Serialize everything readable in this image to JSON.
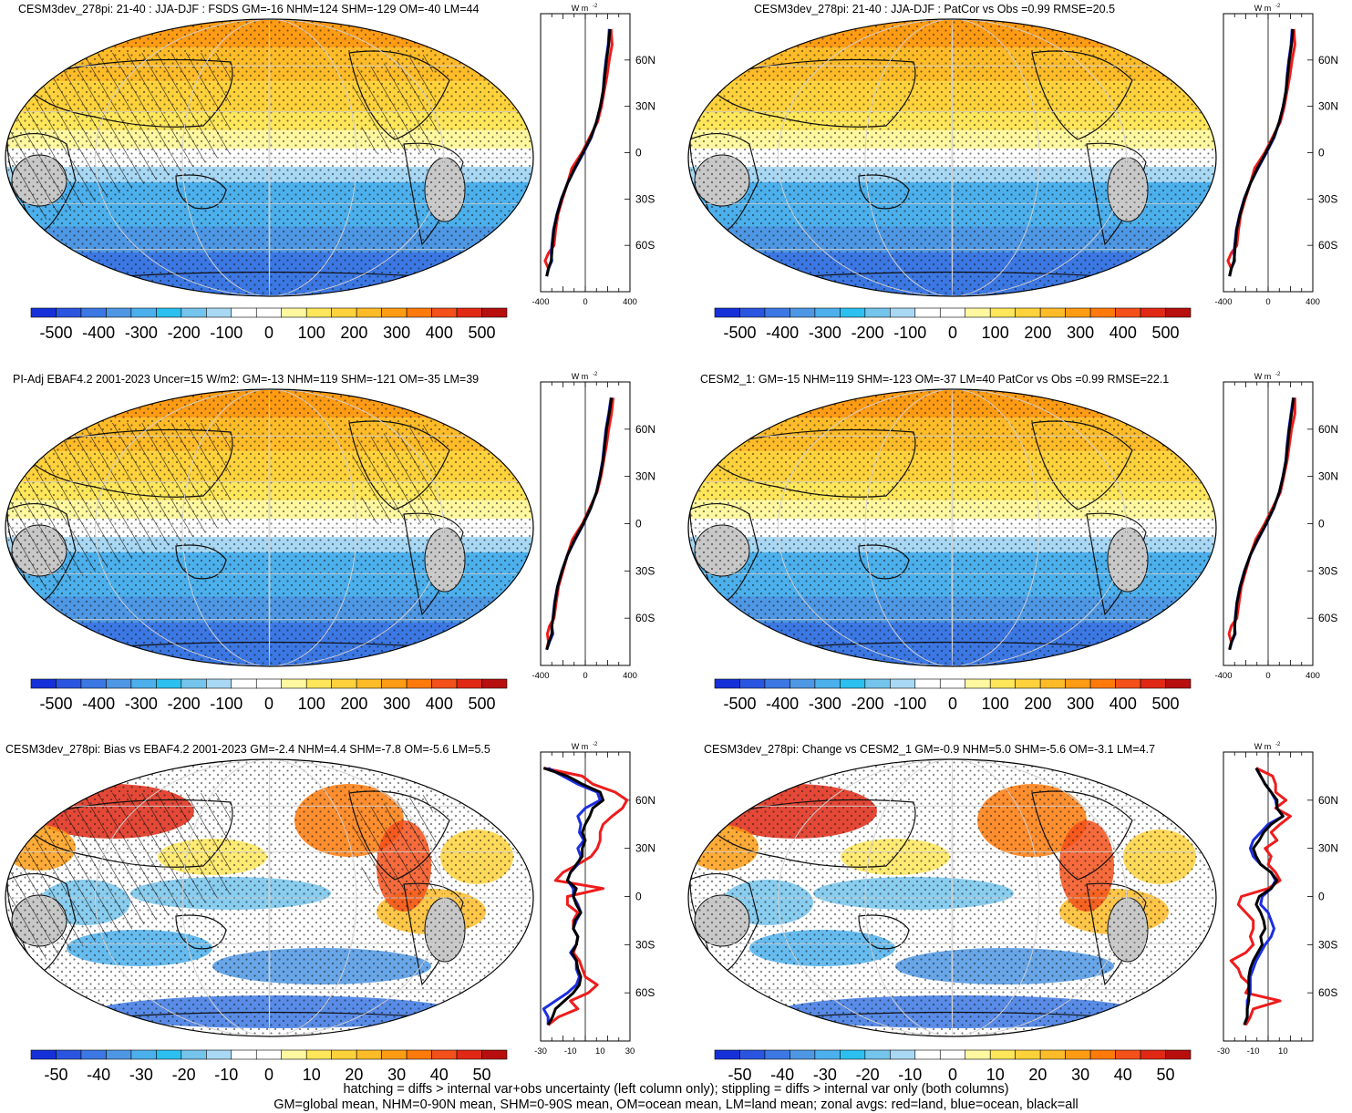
{
  "colors": {
    "scale": [
      "#1530d8",
      "#2a55e0",
      "#3c78e4",
      "#4e97e4",
      "#4cb0ec",
      "#2cc0f0",
      "#74c4ec",
      "#a8d8f4",
      "#ffffff",
      "#ffffff",
      "#fff8a0",
      "#ffe65a",
      "#ffd23c",
      "#ffbc28",
      "#ff9c14",
      "#ff7a0a",
      "#f4501a",
      "#e02814",
      "#b80e0e"
    ],
    "land": "#c8c8c8",
    "zonal_land": "#ee1c1c",
    "zonal_ocean": "#1c2ee0",
    "zonal_all": "#000000",
    "grid": "#d0d0d0"
  },
  "panels": [
    {
      "id": "p1",
      "title": "CESM3dev_278pi: 21-40 : JJA-DJF : FSDS GM=-16 NHM=124 SHM=-129 OM=-40 LM=44",
      "kind": "abs",
      "hatched": true,
      "colorbar": {
        "labels": [
          "-500",
          "-400",
          "-300",
          "-200",
          "-100",
          "0",
          "100",
          "200",
          "300",
          "400",
          "500"
        ]
      },
      "zonal": {
        "unit": "W m",
        "unit_sup": "-2",
        "xlim": [
          -400,
          400
        ],
        "xticks": [
          "-400",
          "0",
          "400"
        ],
        "lat_labels": [
          "60N",
          "30N",
          "0",
          "30S",
          "60S"
        ],
        "lat": [
          80,
          70,
          60,
          50,
          40,
          30,
          20,
          10,
          0,
          -10,
          -20,
          -30,
          -40,
          -50,
          -60,
          -65,
          -70,
          -75,
          -80
        ],
        "land": [
          230,
          240,
          215,
          195,
          170,
          145,
          110,
          40,
          -30,
          -120,
          -160,
          -205,
          -245,
          -265,
          -280,
          -330,
          -360,
          -330,
          -345
        ],
        "ocean": [
          215,
          205,
          185,
          170,
          160,
          135,
          100,
          55,
          -15,
          -90,
          -160,
          -215,
          -255,
          -285,
          -300,
          -305,
          -300,
          -330,
          -345
        ],
        "all": [
          220,
          210,
          190,
          175,
          160,
          135,
          100,
          50,
          -20,
          -95,
          -160,
          -212,
          -252,
          -282,
          -295,
          -300,
          -305,
          -330,
          -345
        ]
      }
    },
    {
      "id": "p2",
      "title": "CESM3dev_278pi: 21-40 : JJA-DJF : PatCor vs Obs =0.99 RMSE=20.5",
      "kind": "abs",
      "hatched": false,
      "colorbar": {
        "labels": [
          "-500",
          "-400",
          "-300",
          "-200",
          "-100",
          "0",
          "100",
          "200",
          "300",
          "400",
          "500"
        ]
      },
      "zonal": {
        "unit": "W m",
        "unit_sup": "-2",
        "xlim": [
          -400,
          400
        ],
        "xticks": [
          "-400",
          "0",
          "400"
        ],
        "lat_labels": [
          "60N",
          "30N",
          "0",
          "30S",
          "60S"
        ],
        "lat": [
          80,
          70,
          60,
          50,
          40,
          30,
          20,
          10,
          0,
          -10,
          -20,
          -30,
          -40,
          -50,
          -60,
          -65,
          -70,
          -75,
          -80
        ],
        "land": [
          230,
          240,
          215,
          195,
          170,
          145,
          110,
          40,
          -30,
          -120,
          -160,
          -205,
          -245,
          -265,
          -280,
          -330,
          -360,
          -330,
          -345
        ],
        "ocean": [
          215,
          205,
          185,
          170,
          160,
          135,
          100,
          55,
          -15,
          -90,
          -160,
          -215,
          -255,
          -285,
          -300,
          -305,
          -300,
          -330,
          -345
        ],
        "all": [
          220,
          210,
          190,
          175,
          160,
          135,
          100,
          50,
          -20,
          -95,
          -160,
          -212,
          -252,
          -282,
          -295,
          -300,
          -305,
          -330,
          -345
        ]
      }
    },
    {
      "id": "p3",
      "title": "PI-Adj EBAF4.2 2001-2023 Uncer=15 W/m2: GM=-13 NHM=119 SHM=-121 OM=-35 LM=39",
      "kind": "abs",
      "hatched": true,
      "colorbar": {
        "labels": [
          "-500",
          "-400",
          "-300",
          "-200",
          "-100",
          "0",
          "100",
          "200",
          "300",
          "400",
          "500"
        ]
      },
      "zonal": {
        "unit": "W m",
        "unit_sup": "-2",
        "xlim": [
          -400,
          400
        ],
        "xticks": [
          "-400",
          "0",
          "400"
        ],
        "lat_labels": [
          "60N",
          "30N",
          "0",
          "30S",
          "60S"
        ],
        "lat": [
          80,
          70,
          60,
          50,
          40,
          30,
          20,
          10,
          0,
          -10,
          -20,
          -30,
          -40,
          -50,
          -60,
          -65,
          -70,
          -75,
          -80
        ],
        "land": [
          250,
          235,
          210,
          190,
          165,
          140,
          105,
          40,
          -25,
          -115,
          -160,
          -200,
          -240,
          -260,
          -280,
          -320,
          -340,
          -330,
          -345
        ],
        "ocean": [
          230,
          210,
          185,
          170,
          155,
          130,
          100,
          50,
          -15,
          -90,
          -160,
          -210,
          -250,
          -275,
          -290,
          -300,
          -290,
          -320,
          -345
        ],
        "all": [
          235,
          215,
          190,
          175,
          158,
          132,
          100,
          48,
          -18,
          -95,
          -160,
          -208,
          -248,
          -272,
          -288,
          -300,
          -300,
          -325,
          -345
        ]
      }
    },
    {
      "id": "p4",
      "title": "CESM2_1: GM=-15 NHM=119 SHM=-123 OM=-37 LM=40 PatCor vs Obs =0.99 RMSE=22.1",
      "kind": "abs",
      "hatched": false,
      "colorbar": {
        "labels": [
          "-500",
          "-400",
          "-300",
          "-200",
          "-100",
          "0",
          "100",
          "200",
          "300",
          "400",
          "500"
        ]
      },
      "zonal": {
        "unit": "W m",
        "unit_sup": "-2",
        "xlim": [
          -400,
          400
        ],
        "xticks": [
          "-400",
          "0",
          "400"
        ],
        "lat_labels": [
          "60N",
          "30N",
          "0",
          "30S",
          "60S"
        ],
        "lat": [
          80,
          70,
          60,
          50,
          40,
          30,
          20,
          10,
          0,
          -10,
          -20,
          -30,
          -40,
          -50,
          -60,
          -65,
          -70,
          -75,
          -80
        ],
        "land": [
          240,
          240,
          210,
          190,
          170,
          140,
          110,
          40,
          -30,
          -110,
          -160,
          -200,
          -240,
          -260,
          -280,
          -330,
          -350,
          -330,
          -345
        ],
        "ocean": [
          225,
          205,
          185,
          170,
          158,
          132,
          100,
          52,
          -15,
          -90,
          -160,
          -212,
          -252,
          -280,
          -295,
          -300,
          -295,
          -325,
          -345
        ],
        "all": [
          228,
          210,
          190,
          175,
          160,
          134,
          100,
          50,
          -18,
          -94,
          -160,
          -210,
          -250,
          -278,
          -292,
          -300,
          -300,
          -328,
          -345
        ]
      }
    },
    {
      "id": "p5",
      "title": "CESM3dev_278pi: Bias vs EBAF4.2 2001-2023 GM=-2.4 NHM=4.4 SHM=-7.8 OM=-5.6 LM=5.5",
      "kind": "diff",
      "hatched": true,
      "colorbar": {
        "labels": [
          "-50",
          "-40",
          "-30",
          "-20",
          "-10",
          "0",
          "10",
          "20",
          "30",
          "40",
          "50"
        ]
      },
      "zonal": {
        "unit": "W m",
        "unit_sup": "-2",
        "xlim": [
          -30,
          30
        ],
        "xticks": [
          "-30",
          "-10",
          "10",
          "30"
        ],
        "lat_labels": [
          "60N",
          "30N",
          "0",
          "30S",
          "60S"
        ],
        "lat": [
          80,
          75,
          70,
          65,
          60,
          55,
          50,
          45,
          40,
          35,
          30,
          25,
          20,
          15,
          10,
          5,
          0,
          -5,
          -10,
          -15,
          -20,
          -25,
          -30,
          -35,
          -40,
          -45,
          -50,
          -55,
          -60,
          -65,
          -70,
          -75,
          -80
        ],
        "land": [
          -28,
          -2,
          5,
          20,
          28,
          25,
          18,
          12,
          10,
          10,
          8,
          4,
          -5,
          -15,
          -20,
          12,
          -12,
          -12,
          -5,
          -8,
          -8,
          -5,
          -6,
          -8,
          -4,
          -2,
          0,
          8,
          2,
          -10,
          -5,
          -18,
          -25
        ],
        "ocean": [
          -25,
          -15,
          -5,
          8,
          10,
          0,
          -5,
          -3,
          -4,
          -1,
          -5,
          -3,
          -5,
          -10,
          -12,
          -8,
          -8,
          -5,
          -3,
          -6,
          -8,
          -5,
          -6,
          -10,
          -6,
          -6,
          -4,
          -6,
          -12,
          -20,
          -28,
          -25,
          -25
        ],
        "all": [
          -28,
          -12,
          -2,
          10,
          12,
          5,
          3,
          0,
          -2,
          0,
          -2,
          -2,
          -6,
          -10,
          -12,
          -6,
          -8,
          -6,
          -3,
          -7,
          -8,
          -5,
          -6,
          -9,
          -6,
          -5,
          -3,
          -4,
          -8,
          -14,
          -20,
          -22,
          -25
        ]
      }
    },
    {
      "id": "p6",
      "title": "CESM3dev_278pi: Change vs CESM2_1 GM=-0.9 NHM=5.0 SHM=-5.6 OM=-3.1 LM=4.7",
      "kind": "diff",
      "hatched": false,
      "colorbar": {
        "labels": [
          "-50",
          "-40",
          "-30",
          "-20",
          "-10",
          "0",
          "10",
          "20",
          "30",
          "40",
          "50"
        ]
      },
      "zonal": {
        "unit": "W m",
        "unit_sup": "-2",
        "xlim": [
          -30,
          30
        ],
        "xticks": [
          "-30",
          "-10",
          "10"
        ],
        "lat_labels": [
          "60N",
          "30N",
          "0",
          "30S",
          "60S"
        ],
        "lat": [
          80,
          75,
          70,
          65,
          60,
          55,
          50,
          45,
          40,
          35,
          30,
          25,
          20,
          15,
          10,
          5,
          0,
          -5,
          -10,
          -15,
          -20,
          -25,
          -30,
          -35,
          -40,
          -45,
          -50,
          -55,
          -60,
          -65,
          -70,
          -75,
          -80
        ],
        "land": [
          -8,
          3,
          5,
          5,
          12,
          5,
          15,
          8,
          2,
          6,
          -2,
          2,
          0,
          5,
          8,
          0,
          -18,
          -20,
          -15,
          -10,
          -10,
          -12,
          -10,
          -15,
          -25,
          -20,
          -18,
          -12,
          -15,
          8,
          -10,
          -12,
          -15
        ],
        "ocean": [
          -8,
          -5,
          -2,
          2,
          5,
          6,
          10,
          0,
          -5,
          -10,
          -12,
          -10,
          -5,
          2,
          5,
          2,
          -4,
          -5,
          0,
          2,
          4,
          2,
          -2,
          -5,
          -8,
          -10,
          -12,
          -12,
          -12,
          -14,
          -14,
          -14,
          -16
        ],
        "all": [
          -8,
          -5,
          -2,
          2,
          6,
          6,
          10,
          2,
          -3,
          -6,
          -10,
          -8,
          -5,
          2,
          6,
          2,
          -6,
          -8,
          -5,
          -3,
          -2,
          -5,
          -4,
          -7,
          -10,
          -12,
          -13,
          -13,
          -13,
          -13,
          -14,
          -14,
          -16
        ]
      }
    }
  ],
  "footer": {
    "line1": "hatching = diffs > internal var+obs uncertainty (left column only); stippling = diffs > internal var only (both columns)",
    "line2": "GM=global mean, NHM=0-90N mean, SHM=0-90S mean, OM=ocean mean, LM=land mean; zonal avgs: red=land, blue=ocean, black=all"
  }
}
